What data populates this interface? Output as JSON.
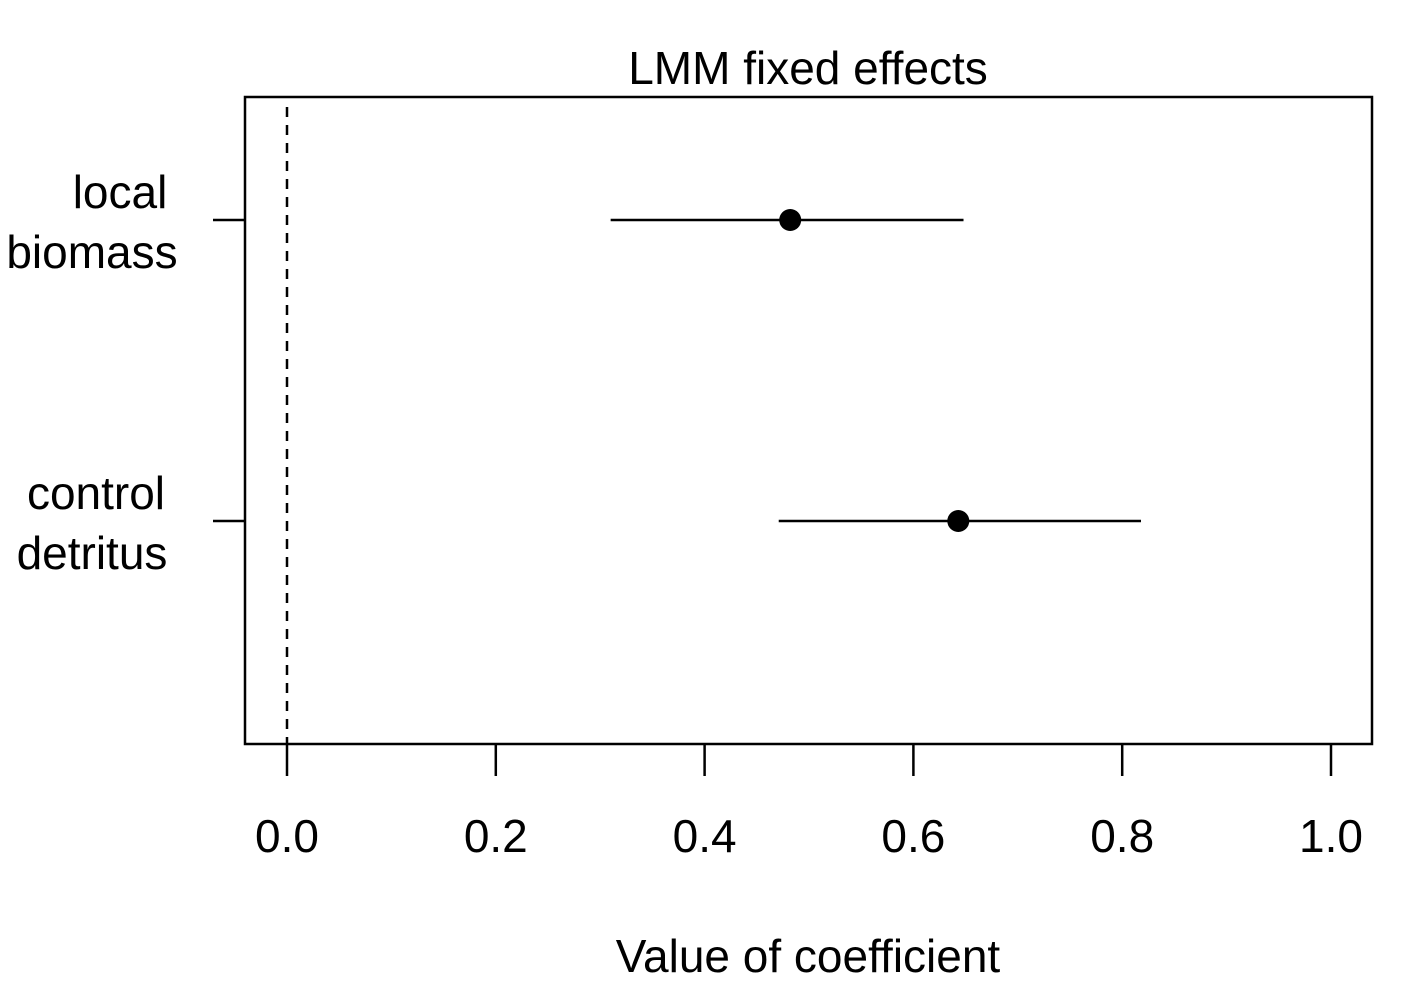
{
  "chart_data": {
    "type": "scatter",
    "title": "LMM fixed effects",
    "xlabel": "Value of coefficient",
    "ylabel": "",
    "xlim": [
      -0.02,
      1.02
    ],
    "x_ticks": [
      0.0,
      0.2,
      0.4,
      0.6,
      0.8,
      1.0
    ],
    "x_tick_labels": [
      "0.0",
      "0.2",
      "0.4",
      "0.6",
      "0.8",
      "1.0"
    ],
    "reference_line": {
      "x": 0.0,
      "style": "dashed"
    },
    "grid": false,
    "legend": "none",
    "colors": {
      "points": "#000000",
      "lines": "#000000",
      "background": "#ffffff"
    },
    "series": [
      {
        "label_lines": [
          "local",
          "biomass"
        ],
        "estimate": 0.482,
        "ci_low": 0.31,
        "ci_high": 0.648
      },
      {
        "label_lines": [
          "control",
          "detritus"
        ],
        "estimate": 0.643,
        "ci_low": 0.471,
        "ci_high": 0.818
      }
    ]
  }
}
